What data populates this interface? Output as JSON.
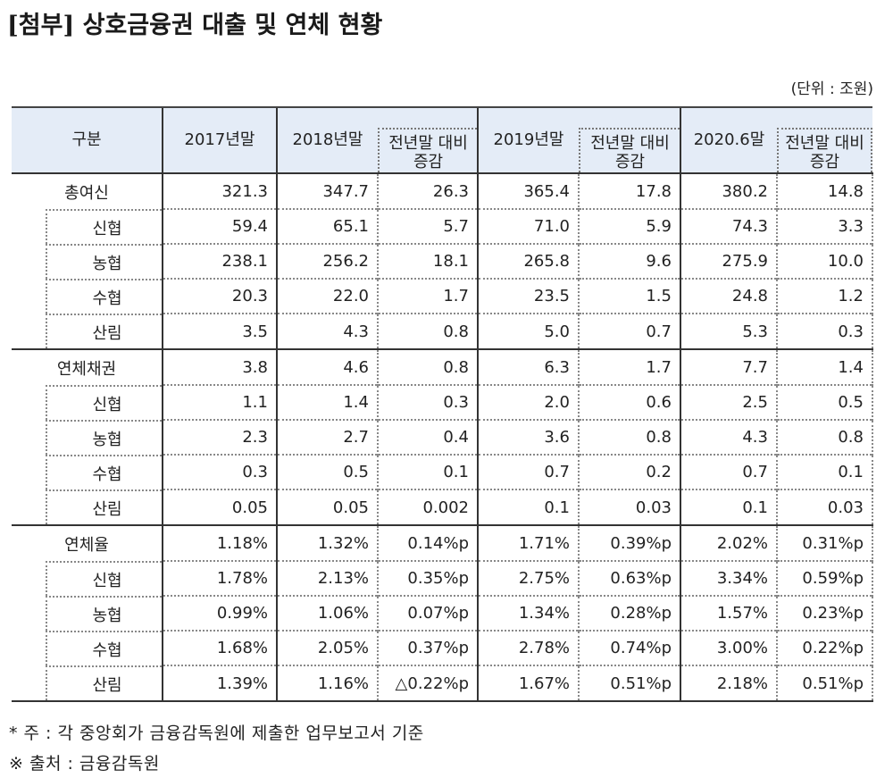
{
  "title": "[첨부] 상호금융권 대출 및 연체 현황",
  "unit": "(단위 : 조원)",
  "table": {
    "headers": {
      "category": "구분",
      "y2017": "2017년말",
      "y2018": "2018년말",
      "chg2018_line1": "전년말 대비",
      "chg2018_line2": "증감",
      "y2019": "2019년말",
      "chg2019_line1": "전년말 대비",
      "chg2019_line2": "증감",
      "y2020": "2020.6말",
      "chg2020_line1": "전년말 대비",
      "chg2020_line2": "증감"
    },
    "sections": [
      {
        "label": "총여신",
        "values": [
          "321.3",
          "347.7",
          "26.3",
          "365.4",
          "17.8",
          "380.2",
          "14.8"
        ],
        "rows": [
          {
            "label": "신협",
            "values": [
              "59.4",
              "65.1",
              "5.7",
              "71.0",
              "5.9",
              "74.3",
              "3.3"
            ]
          },
          {
            "label": "농협",
            "values": [
              "238.1",
              "256.2",
              "18.1",
              "265.8",
              "9.6",
              "275.9",
              "10.0"
            ]
          },
          {
            "label": "수협",
            "values": [
              "20.3",
              "22.0",
              "1.7",
              "23.5",
              "1.5",
              "24.8",
              "1.2"
            ]
          },
          {
            "label": "산림",
            "values": [
              "3.5",
              "4.3",
              "0.8",
              "5.0",
              "0.7",
              "5.3",
              "0.3"
            ]
          }
        ]
      },
      {
        "label": "연체채권",
        "values": [
          "3.8",
          "4.6",
          "0.8",
          "6.3",
          "1.7",
          "7.7",
          "1.4"
        ],
        "rows": [
          {
            "label": "신협",
            "values": [
              "1.1",
              "1.4",
              "0.3",
              "2.0",
              "0.6",
              "2.5",
              "0.5"
            ]
          },
          {
            "label": "농협",
            "values": [
              "2.3",
              "2.7",
              "0.4",
              "3.6",
              "0.8",
              "4.3",
              "0.8"
            ]
          },
          {
            "label": "수협",
            "values": [
              "0.3",
              "0.5",
              "0.1",
              "0.7",
              "0.2",
              "0.7",
              "0.1"
            ]
          },
          {
            "label": "산림",
            "values": [
              "0.05",
              "0.05",
              "0.002",
              "0.1",
              "0.03",
              "0.1",
              "0.03"
            ]
          }
        ]
      },
      {
        "label": "연체율",
        "values": [
          "1.18%",
          "1.32%",
          "0.14%p",
          "1.71%",
          "0.39%p",
          "2.02%",
          "0.31%p"
        ],
        "rows": [
          {
            "label": "신협",
            "values": [
              "1.78%",
              "2.13%",
              "0.35%p",
              "2.75%",
              "0.63%p",
              "3.34%",
              "0.59%p"
            ]
          },
          {
            "label": "농협",
            "values": [
              "0.99%",
              "1.06%",
              "0.07%p",
              "1.34%",
              "0.28%p",
              "1.57%",
              "0.23%p"
            ]
          },
          {
            "label": "수협",
            "values": [
              "1.68%",
              "2.05%",
              "0.37%p",
              "2.78%",
              "0.74%p",
              "3.00%",
              "0.22%p"
            ]
          },
          {
            "label": "산림",
            "values": [
              "1.39%",
              "1.16%",
              "△0.22%p",
              "1.67%",
              "0.51%p",
              "2.18%",
              "0.51%p"
            ]
          }
        ]
      }
    ]
  },
  "footnotes": {
    "note": "*  주 : 각 중앙회가 금융감독원에 제출한 업무보고서 기준",
    "source": "※ 출처 : 금융감독원"
  }
}
